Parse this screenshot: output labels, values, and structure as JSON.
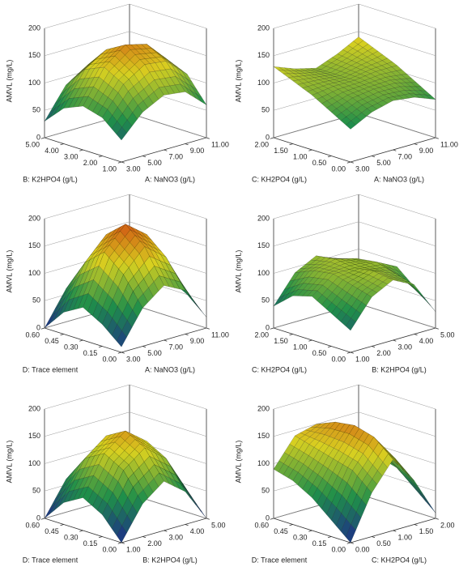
{
  "chart_data": [
    {
      "type": "surface3d",
      "x_label": "A: NaNO3 (g/L)",
      "y_label": "B: K2HPO4 (g/L)",
      "z_label": "AMVL (mg/L)",
      "x": [
        3,
        5,
        7,
        9,
        11
      ],
      "y": [
        1,
        2,
        3,
        4,
        5
      ],
      "z": [
        [
          40,
          80,
          100,
          95,
          60
        ],
        [
          70,
          120,
          145,
          140,
          105
        ],
        [
          80,
          140,
          170,
          160,
          120
        ],
        [
          65,
          125,
          150,
          145,
          105
        ],
        [
          30,
          85,
          110,
          100,
          60
        ]
      ],
      "xlim": [
        3,
        11
      ],
      "ylim": [
        1,
        5
      ],
      "zlim": [
        0,
        200
      ],
      "xticks": [
        {
          "value": 3,
          "label": "3.00"
        },
        {
          "value": 5,
          "label": "5.00"
        },
        {
          "value": 7,
          "label": "7.00"
        },
        {
          "value": 9,
          "label": "9.00"
        },
        {
          "value": 11,
          "label": "11.00"
        }
      ],
      "yticks": [
        {
          "value": 1,
          "label": "1.00"
        },
        {
          "value": 2,
          "label": "2.00"
        },
        {
          "value": 3,
          "label": "3.00"
        },
        {
          "value": 4,
          "label": "4.00"
        },
        {
          "value": 5,
          "label": "5.00"
        }
      ],
      "zticks": [
        0,
        50,
        100,
        150,
        200
      ],
      "colors": [
        "#1c2a8c",
        "#1f8f4a",
        "#d8d020",
        "#d04010"
      ]
    },
    {
      "type": "surface3d",
      "x_label": "A: NaNO3 (g/L)",
      "y_label": "C: KH2PO4 (g/L)",
      "z_label": "AMVL (mg/L)",
      "x": [
        3,
        5,
        7,
        9,
        11
      ],
      "y": [
        0,
        0.5,
        1,
        1.5,
        2
      ],
      "z": [
        [
          60,
          80,
          90,
          85,
          70
        ],
        [
          80,
          95,
          100,
          100,
          90
        ],
        [
          100,
          105,
          105,
          110,
          110
        ],
        [
          115,
          110,
          105,
          115,
          125
        ],
        [
          130,
          115,
          105,
          120,
          140
        ]
      ],
      "xlim": [
        3,
        11
      ],
      "ylim": [
        0,
        2
      ],
      "zlim": [
        0,
        200
      ],
      "xticks": [
        {
          "value": 3,
          "label": "3.00"
        },
        {
          "value": 5,
          "label": "5.00"
        },
        {
          "value": 7,
          "label": "7.00"
        },
        {
          "value": 9,
          "label": "9.00"
        },
        {
          "value": 11,
          "label": "11.00"
        }
      ],
      "yticks": [
        {
          "value": 0,
          "label": "0.00"
        },
        {
          "value": 0.5,
          "label": "0.50"
        },
        {
          "value": 1,
          "label": "1.00"
        },
        {
          "value": 1.5,
          "label": "1.50"
        },
        {
          "value": 2,
          "label": "2.00"
        }
      ],
      "zticks": [
        0,
        50,
        100,
        150,
        200
      ],
      "colors": [
        "#1c2a8c",
        "#1f8f4a",
        "#d8d020",
        "#d04010"
      ]
    },
    {
      "type": "surface3d",
      "x_label": "A: NaNO3 (g/L)",
      "y_label": "D: Trace element",
      "z_label": "AMVL (mg/L)",
      "x": [
        3,
        5,
        7,
        9,
        11
      ],
      "y": [
        0,
        0.15,
        0.3,
        0.45,
        0.6
      ],
      "z": [
        [
          10,
          70,
          100,
          80,
          20
        ],
        [
          40,
          120,
          160,
          130,
          50
        ],
        [
          60,
          150,
          190,
          160,
          70
        ],
        [
          40,
          120,
          160,
          130,
          50
        ],
        [
          0,
          60,
          100,
          80,
          10
        ]
      ],
      "xlim": [
        3,
        11
      ],
      "ylim": [
        0,
        0.6
      ],
      "zlim": [
        0,
        200
      ],
      "xticks": [
        {
          "value": 3,
          "label": "3.00"
        },
        {
          "value": 5,
          "label": "5.00"
        },
        {
          "value": 7,
          "label": "7.00"
        },
        {
          "value": 9,
          "label": "9.00"
        },
        {
          "value": 11,
          "label": "11.00"
        }
      ],
      "yticks": [
        {
          "value": 0,
          "label": "0.00"
        },
        {
          "value": 0.15,
          "label": "0.15"
        },
        {
          "value": 0.3,
          "label": "0.30"
        },
        {
          "value": 0.45,
          "label": "0.45"
        },
        {
          "value": 0.6,
          "label": "0.60"
        }
      ],
      "zticks": [
        0,
        50,
        100,
        150,
        200
      ],
      "colors": [
        "#1c2a8c",
        "#1f8f4a",
        "#d8d020",
        "#d04010"
      ]
    },
    {
      "type": "surface3d",
      "x_label": "B: K2HPO4 (g/L)",
      "y_label": "C: KH2PO4 (g/L)",
      "z_label": "AMVL (mg/L)",
      "x": [
        1,
        2,
        3,
        4,
        5
      ],
      "y": [
        0,
        0.5,
        1,
        1.5,
        2
      ],
      "z": [
        [
          40,
          90,
          110,
          90,
          30
        ],
        [
          60,
          100,
          115,
          100,
          60
        ],
        [
          80,
          110,
          110,
          110,
          90
        ],
        [
          70,
          105,
          115,
          105,
          70
        ],
        [
          40,
          90,
          110,
          90,
          40
        ]
      ],
      "xlim": [
        1,
        5
      ],
      "ylim": [
        0,
        2
      ],
      "zlim": [
        0,
        200
      ],
      "xticks": [
        {
          "value": 1,
          "label": "1.00"
        },
        {
          "value": 2,
          "label": "2.00"
        },
        {
          "value": 3,
          "label": "3.00"
        },
        {
          "value": 4,
          "label": "4.00"
        },
        {
          "value": 5,
          "label": "5.00"
        }
      ],
      "yticks": [
        {
          "value": 0,
          "label": "0.00"
        },
        {
          "value": 0.5,
          "label": "0.50"
        },
        {
          "value": 1,
          "label": "1.00"
        },
        {
          "value": 1.5,
          "label": "1.50"
        },
        {
          "value": 2,
          "label": "2.00"
        }
      ],
      "zticks": [
        0,
        50,
        100,
        150,
        200
      ],
      "colors": [
        "#1c2a8c",
        "#1f8f4a",
        "#d8d020",
        "#d04010"
      ]
    },
    {
      "type": "surface3d",
      "x_label": "B: K2HPO4 (g/L)",
      "y_label": "D: Trace element",
      "z_label": "AMVL (mg/L)",
      "x": [
        1,
        2,
        3,
        4,
        5
      ],
      "y": [
        0,
        0.15,
        0.3,
        0.45,
        0.6
      ],
      "z": [
        [
          0,
          60,
          90,
          60,
          0
        ],
        [
          40,
          110,
          140,
          110,
          40
        ],
        [
          60,
          130,
          160,
          130,
          60
        ],
        [
          40,
          110,
          140,
          110,
          40
        ],
        [
          0,
          60,
          90,
          60,
          0
        ]
      ],
      "xlim": [
        1,
        5
      ],
      "ylim": [
        0,
        0.6
      ],
      "zlim": [
        0,
        200
      ],
      "xticks": [
        {
          "value": 1,
          "label": "1.00"
        },
        {
          "value": 2,
          "label": "2.00"
        },
        {
          "value": 3,
          "label": "3.00"
        },
        {
          "value": 4,
          "label": "4.00"
        },
        {
          "value": 5,
          "label": "5.00"
        }
      ],
      "yticks": [
        {
          "value": 0,
          "label": "0.00"
        },
        {
          "value": 0.15,
          "label": "0.15"
        },
        {
          "value": 0.3,
          "label": "0.30"
        },
        {
          "value": 0.45,
          "label": "0.45"
        },
        {
          "value": 0.6,
          "label": "0.60"
        }
      ],
      "zticks": [
        0,
        50,
        100,
        150,
        200
      ],
      "colors": [
        "#1c2a8c",
        "#1f8f4a",
        "#d8d020",
        "#d04010"
      ]
    },
    {
      "type": "surface3d",
      "x_label": "C: KH2PO4 (g/L)",
      "y_label": "D: Trace element",
      "z_label": "AMVL (mg/L)",
      "x": [
        0,
        0.5,
        1,
        1.5,
        2
      ],
      "y": [
        0,
        0.15,
        0.3,
        0.45,
        0.6
      ],
      "z": [
        [
          0,
          80,
          130,
          80,
          10
        ],
        [
          30,
          110,
          160,
          110,
          40
        ],
        [
          60,
          120,
          170,
          120,
          70
        ],
        [
          80,
          130,
          165,
          120,
          80
        ],
        [
          90,
          140,
          150,
          120,
          90
        ]
      ],
      "xlim": [
        0,
        2
      ],
      "ylim": [
        0,
        0.6
      ],
      "zlim": [
        0,
        200
      ],
      "xticks": [
        {
          "value": 0,
          "label": "0.00"
        },
        {
          "value": 0.5,
          "label": "0.50"
        },
        {
          "value": 1,
          "label": "1.00"
        },
        {
          "value": 1.5,
          "label": "1.50"
        },
        {
          "value": 2,
          "label": "2.00"
        }
      ],
      "yticks": [
        {
          "value": 0,
          "label": "0.00"
        },
        {
          "value": 0.15,
          "label": "0.15"
        },
        {
          "value": 0.3,
          "label": "0.30"
        },
        {
          "value": 0.45,
          "label": "0.45"
        },
        {
          "value": 0.6,
          "label": "0.60"
        }
      ],
      "zticks": [
        0,
        50,
        100,
        150,
        200
      ],
      "colors": [
        "#1c2a8c",
        "#1f8f4a",
        "#d8d020",
        "#d04010"
      ]
    }
  ]
}
